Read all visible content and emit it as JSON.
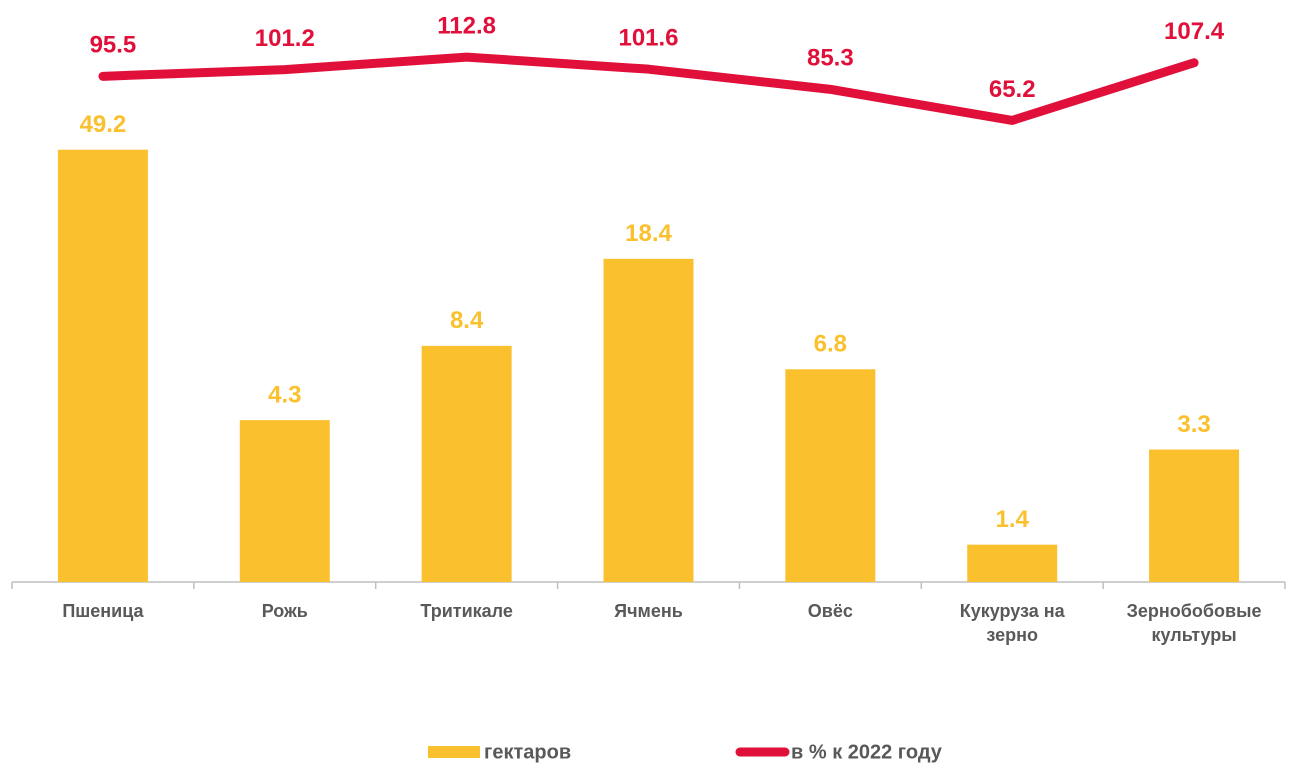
{
  "chart_data": {
    "type": "bar_line",
    "categories": [
      "Пшеница",
      "Рожь",
      "Тритикале",
      "Ячмень",
      "Овёс",
      "Кукуруза на зерно",
      "Зернобобовые культуры"
    ],
    "series": [
      {
        "name": "гектаров",
        "type": "bar",
        "color": "#fbc02d",
        "values": [
          49.2,
          4.3,
          8.4,
          18.4,
          6.8,
          1.4,
          3.3
        ]
      },
      {
        "name": "в % к 2022 году",
        "type": "line",
        "axis": "y2",
        "color": "#e0103a",
        "values": [
          95.5,
          101.2,
          112.8,
          101.6,
          85.3,
          65.2,
          107.4
        ]
      }
    ],
    "ylim": [
      1,
      100
    ],
    "y_log_scale": true,
    "y2lim": [
      1.2,
      100
    ],
    "y2_log_scale": true,
    "legend": "bottom"
  }
}
